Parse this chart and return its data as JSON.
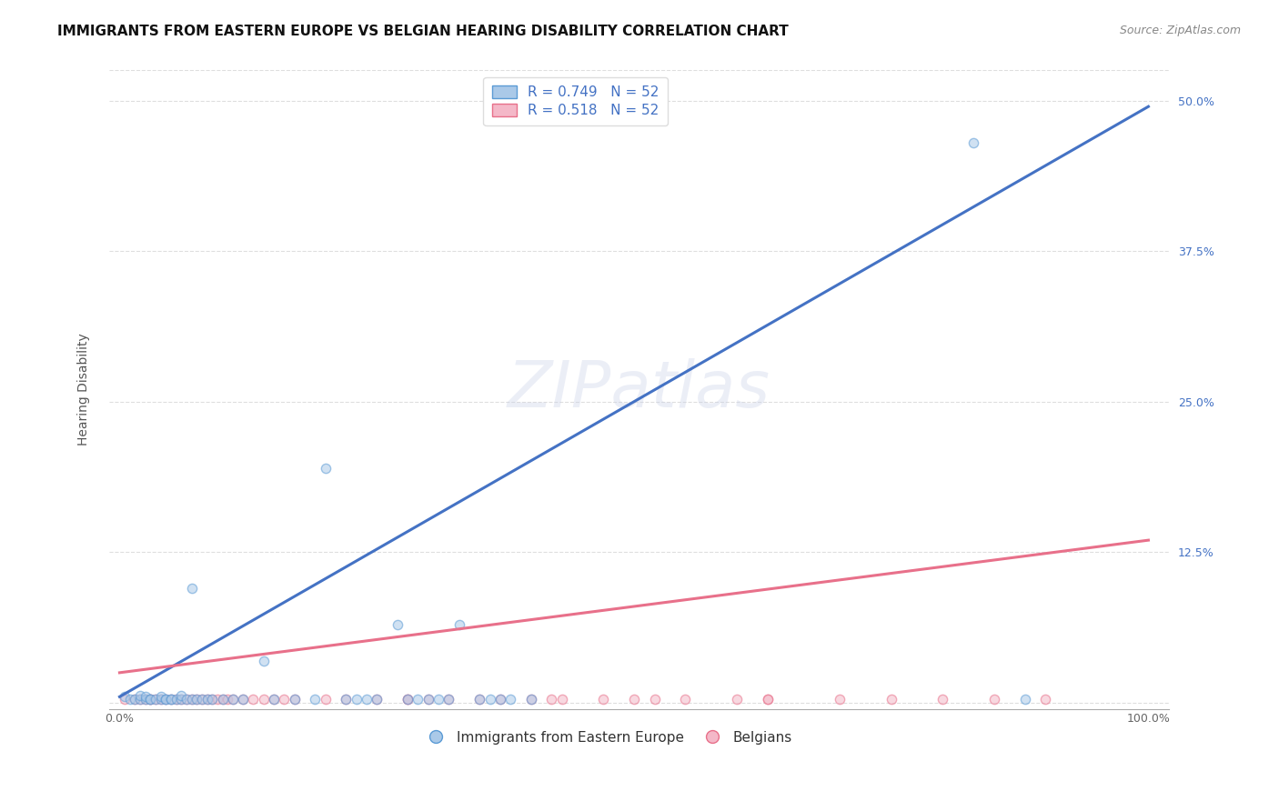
{
  "title": "IMMIGRANTS FROM EASTERN EUROPE VS BELGIAN HEARING DISABILITY CORRELATION CHART",
  "source": "Source: ZipAtlas.com",
  "ylabel": "Hearing Disability",
  "yticks": [
    0.0,
    0.125,
    0.25,
    0.375,
    0.5
  ],
  "ytick_labels": [
    "",
    "12.5%",
    "25.0%",
    "37.5%",
    "50.0%"
  ],
  "xticks": [
    0.0,
    0.2,
    0.4,
    0.6,
    0.8,
    1.0
  ],
  "xtick_labels": [
    "0.0%",
    "",
    "",
    "",
    "",
    "100.0%"
  ],
  "legend_blue_label": "R = 0.749   N = 52",
  "legend_pink_label": "R = 0.518   N = 52",
  "legend_bottom_blue": "Immigrants from Eastern Europe",
  "legend_bottom_pink": "Belgians",
  "blue_color": "#aac9e8",
  "pink_color": "#f4b8c8",
  "blue_edge_color": "#5b9bd5",
  "pink_edge_color": "#e8708a",
  "blue_line_color": "#4472c4",
  "pink_line_color": "#e8708a",
  "watermark": "ZIPatlas",
  "blue_scatter_x": [
    0.005,
    0.01,
    0.015,
    0.02,
    0.02,
    0.025,
    0.025,
    0.03,
    0.03,
    0.035,
    0.04,
    0.04,
    0.045,
    0.045,
    0.05,
    0.05,
    0.055,
    0.06,
    0.06,
    0.065,
    0.07,
    0.07,
    0.075,
    0.08,
    0.085,
    0.09,
    0.1,
    0.11,
    0.12,
    0.14,
    0.15,
    0.17,
    0.19,
    0.2,
    0.22,
    0.23,
    0.24,
    0.25,
    0.27,
    0.28,
    0.29,
    0.3,
    0.31,
    0.32,
    0.33,
    0.35,
    0.36,
    0.37,
    0.38,
    0.4,
    0.83,
    0.88
  ],
  "blue_scatter_y": [
    0.005,
    0.003,
    0.003,
    0.003,
    0.006,
    0.003,
    0.005,
    0.003,
    0.003,
    0.003,
    0.003,
    0.005,
    0.003,
    0.003,
    0.003,
    0.003,
    0.003,
    0.003,
    0.006,
    0.003,
    0.003,
    0.095,
    0.003,
    0.003,
    0.003,
    0.003,
    0.003,
    0.003,
    0.003,
    0.035,
    0.003,
    0.003,
    0.003,
    0.195,
    0.003,
    0.003,
    0.003,
    0.003,
    0.065,
    0.003,
    0.003,
    0.003,
    0.003,
    0.003,
    0.065,
    0.003,
    0.003,
    0.003,
    0.003,
    0.003,
    0.465,
    0.003
  ],
  "pink_scatter_x": [
    0.005,
    0.015,
    0.02,
    0.025,
    0.03,
    0.03,
    0.035,
    0.04,
    0.045,
    0.05,
    0.055,
    0.06,
    0.065,
    0.07,
    0.075,
    0.08,
    0.085,
    0.09,
    0.095,
    0.1,
    0.105,
    0.11,
    0.12,
    0.13,
    0.14,
    0.15,
    0.16,
    0.17,
    0.2,
    0.22,
    0.25,
    0.28,
    0.3,
    0.32,
    0.35,
    0.37,
    0.4,
    0.43,
    0.47,
    0.5,
    0.55,
    0.6,
    0.63,
    0.7,
    0.75,
    0.8,
    0.85,
    0.9,
    0.42,
    0.28,
    0.52,
    0.63
  ],
  "pink_scatter_y": [
    0.003,
    0.003,
    0.003,
    0.003,
    0.003,
    0.003,
    0.003,
    0.003,
    0.003,
    0.003,
    0.003,
    0.003,
    0.003,
    0.003,
    0.003,
    0.003,
    0.003,
    0.003,
    0.003,
    0.003,
    0.003,
    0.003,
    0.003,
    0.003,
    0.003,
    0.003,
    0.003,
    0.003,
    0.003,
    0.003,
    0.003,
    0.003,
    0.003,
    0.003,
    0.003,
    0.003,
    0.003,
    0.003,
    0.003,
    0.003,
    0.003,
    0.003,
    0.003,
    0.003,
    0.003,
    0.003,
    0.003,
    0.003,
    0.003,
    0.003,
    0.003,
    0.003
  ],
  "blue_line_x": [
    0.0,
    1.0
  ],
  "blue_line_y": [
    0.005,
    0.495
  ],
  "pink_line_x": [
    0.0,
    1.0
  ],
  "pink_line_y": [
    0.025,
    0.135
  ],
  "xlim": [
    -0.01,
    1.02
  ],
  "ylim": [
    -0.005,
    0.525
  ],
  "title_fontsize": 11,
  "source_fontsize": 9,
  "axis_label_fontsize": 10,
  "tick_fontsize": 9,
  "legend_fontsize": 11,
  "watermark_fontsize": 52,
  "watermark_color": "#c8d0e8",
  "watermark_alpha": 0.35,
  "scatter_size": 55,
  "scatter_alpha": 0.55,
  "scatter_linewidth": 1.0,
  "line_width": 2.2,
  "grid_color": "#c8c8c8",
  "grid_style": "--",
  "grid_alpha": 0.6,
  "background_color": "#ffffff"
}
